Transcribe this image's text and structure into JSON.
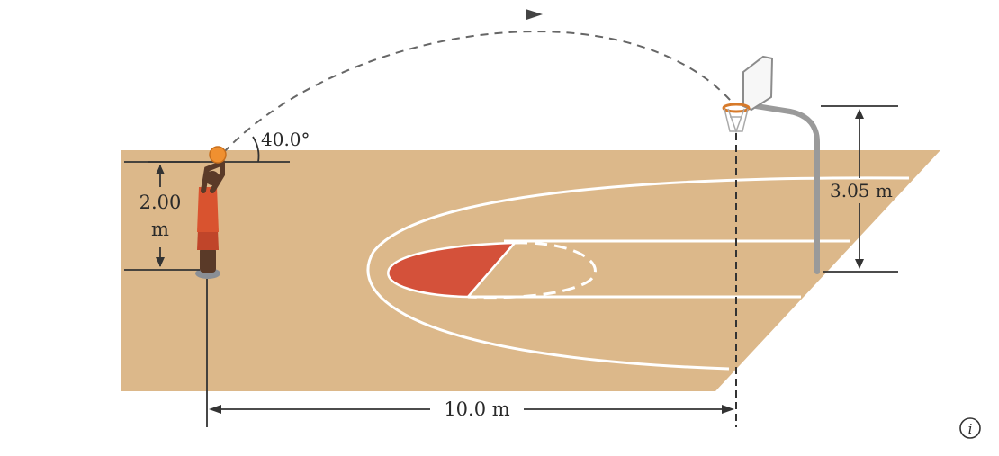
{
  "figure": {
    "angle_label": "40.0°",
    "height_label_line1": "2.00",
    "height_label_line2": "m",
    "hoop_height_label": "3.05 m",
    "distance_label": "10.0 m",
    "corner_mark": "i"
  },
  "colors": {
    "court": "#dcb88a",
    "key_paint": "#d4513a",
    "court_lines": "#ffffff",
    "dimension_lines": "#333333",
    "trajectory": "#666666",
    "pole": "#9a9a9a",
    "jersey": "#d9532f",
    "ball": "#f09030"
  }
}
